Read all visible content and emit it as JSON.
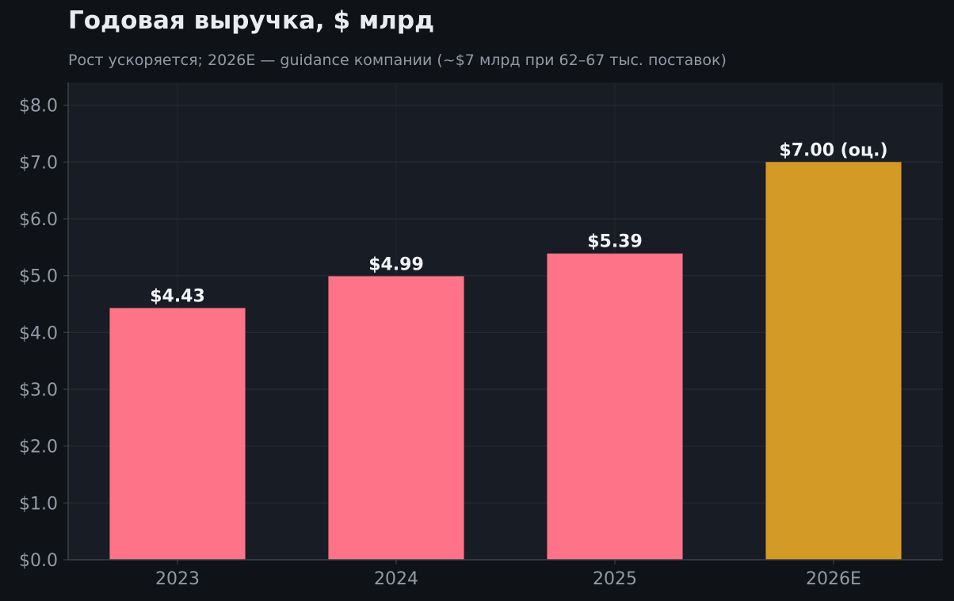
{
  "chart_data": {
    "type": "bar",
    "title": "Годовая выручка, $ млрд",
    "subtitle": "Рост ускоряется; 2026E — guidance компании (~$7 млрд при 62–67 тыс. поставок)",
    "xlabel": "",
    "ylabel": "",
    "categories": [
      "2023",
      "2024",
      "2025",
      "2026E"
    ],
    "values": [
      4.43,
      4.99,
      5.39,
      7.0
    ],
    "value_labels": [
      "$4.43",
      "$4.99",
      "$5.39",
      "$7.00 (оц.)"
    ],
    "estimated": [
      false,
      false,
      false,
      true
    ],
    "ylim": [
      0,
      8.4
    ],
    "yticks": [
      0,
      1,
      2,
      3,
      4,
      5,
      6,
      7,
      8
    ],
    "ytick_labels": [
      "$0.0",
      "$1.0",
      "$2.0",
      "$3.0",
      "$4.0",
      "$5.0",
      "$6.0",
      "$7.0",
      "$8.0"
    ],
    "grid": true,
    "legend": "none",
    "colors": {
      "actual": "#ff7388",
      "estimate": "#d49a26",
      "plot_background": "#181c24",
      "page_background": "#0f1216",
      "grid": "#262b35",
      "axis": "#3a404b",
      "tick_text": "#939aa5",
      "label_text": "#f2f4f8"
    }
  }
}
